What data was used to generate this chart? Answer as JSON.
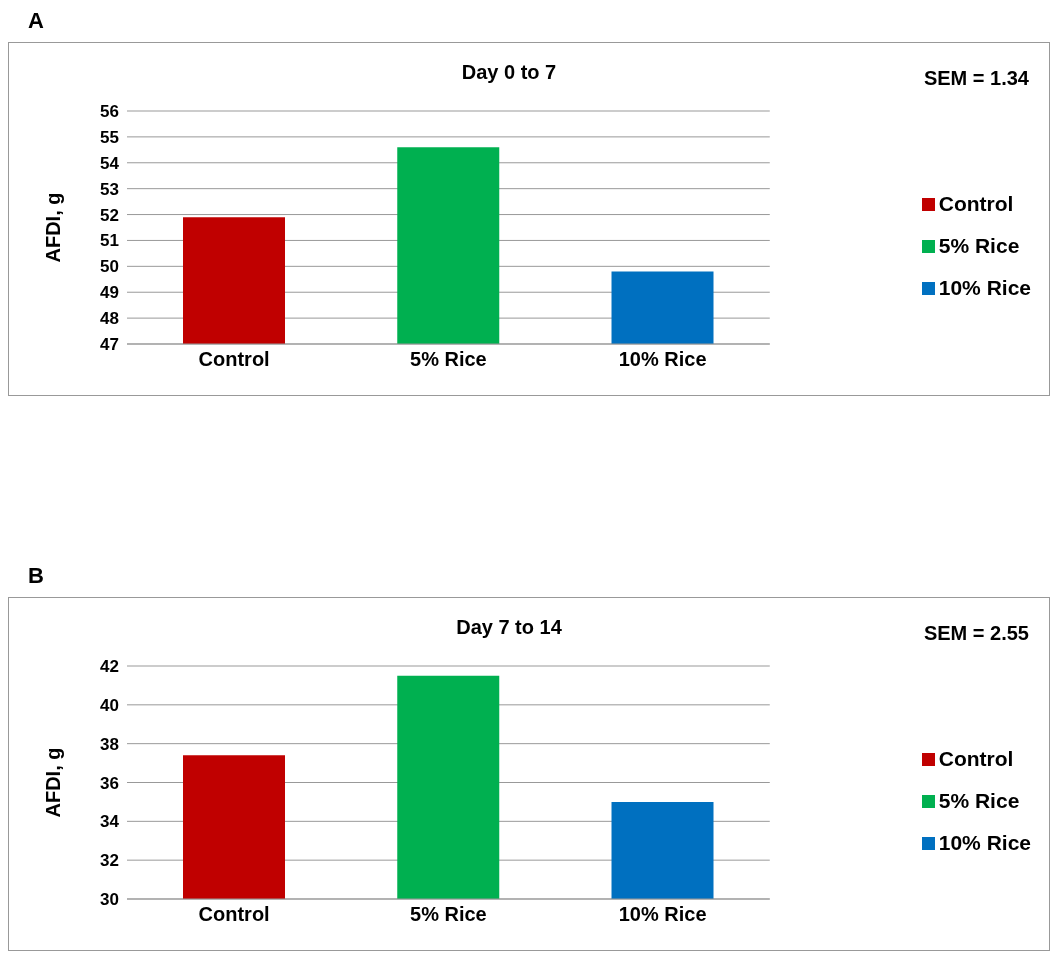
{
  "chart_data": [
    {
      "type": "bar",
      "title": "Day 0 to 7",
      "ylabel": "AFDI, g",
      "categories": [
        "Control",
        "5% Rice",
        "10% Rice"
      ],
      "series": [
        {
          "name": "Control",
          "color": "#c00000",
          "values": [
            51.9,
            null,
            null
          ]
        },
        {
          "name": "5% Rice",
          "color": "#00b050",
          "values": [
            null,
            54.6,
            null
          ]
        },
        {
          "name": "10% Rice",
          "color": "#0070c0",
          "values": [
            null,
            null,
            49.8
          ]
        }
      ],
      "ylim": [
        47,
        56
      ],
      "yticks": [
        47,
        48,
        49,
        50,
        51,
        52,
        53,
        54,
        55,
        56
      ],
      "grid": "y",
      "legend": "right",
      "annotations": [
        "A",
        "SEM = 1.34"
      ]
    },
    {
      "type": "bar",
      "title": "Day 7 to 14",
      "ylabel": "AFDI, g",
      "categories": [
        "Control",
        "5% Rice",
        "10% Rice"
      ],
      "series": [
        {
          "name": "Control",
          "color": "#c00000",
          "values": [
            37.4,
            null,
            null
          ]
        },
        {
          "name": "5% Rice",
          "color": "#00b050",
          "values": [
            null,
            41.5,
            null
          ]
        },
        {
          "name": "10% Rice",
          "color": "#0070c0",
          "values": [
            null,
            null,
            35.0
          ]
        }
      ],
      "ylim": [
        30,
        42
      ],
      "yticks": [
        30,
        32,
        34,
        36,
        38,
        40,
        42
      ],
      "grid": "y",
      "legend": "right",
      "annotations": [
        "B",
        "SEM = 2.55"
      ]
    }
  ]
}
